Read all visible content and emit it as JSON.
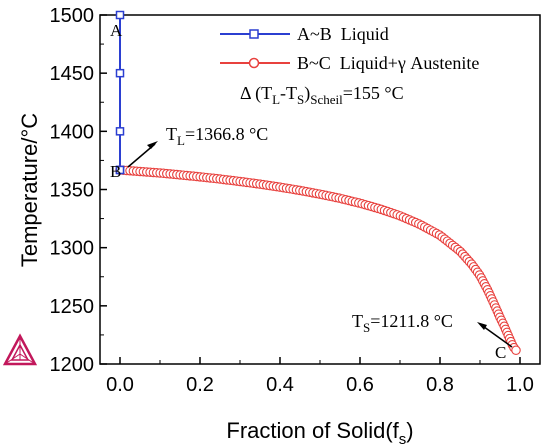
{
  "chart_data": {
    "type": "line",
    "xlabel": "Fraction of Solid(f",
    "xlabel_sub": "s",
    "xlabel_close": ")",
    "ylabel": "Temperature/°C",
    "xlim": [
      -0.05,
      1.05
    ],
    "ylim": [
      1200,
      1500
    ],
    "xticks": [
      0.0,
      0.2,
      0.4,
      0.6,
      0.8,
      1.0
    ],
    "xtick_labels": [
      "0.0",
      "0.2",
      "0.4",
      "0.6",
      "0.8",
      "1.0"
    ],
    "yticks": [
      1200,
      1250,
      1300,
      1350,
      1400,
      1450,
      1500
    ],
    "ytick_labels": [
      "1200",
      "1250",
      "1300",
      "1350",
      "1400",
      "1450",
      "1500"
    ],
    "grid": false,
    "legend_position": "top-right",
    "series": [
      {
        "name": "A~B  Liquid",
        "color": "#2b3fd1",
        "marker": "square",
        "x": [
          0,
          0,
          0,
          0,
          0
        ],
        "y": [
          1500,
          1450,
          1400,
          1366.8,
          1366.8
        ]
      },
      {
        "name": "B~C  Liquid+γ Austenite",
        "color": "#e8413e",
        "marker": "circle",
        "x": [
          0.0,
          0.05,
          0.1,
          0.15,
          0.2,
          0.25,
          0.3,
          0.35,
          0.4,
          0.45,
          0.5,
          0.55,
          0.6,
          0.65,
          0.7,
          0.75,
          0.8,
          0.85,
          0.88,
          0.9,
          0.92,
          0.94,
          0.95,
          0.96,
          0.97,
          0.975,
          0.98,
          0.985,
          0.99
        ],
        "y": [
          1366.8,
          1365.5,
          1364.2,
          1362.6,
          1360.9,
          1359.0,
          1356.9,
          1354.6,
          1352.0,
          1349.2,
          1346.0,
          1342.4,
          1338.2,
          1333.3,
          1327.4,
          1320.0,
          1310.6,
          1297.0,
          1285.5,
          1276.0,
          1263.0,
          1248.0,
          1240.0,
          1233.0,
          1225.0,
          1221.0,
          1217.0,
          1214.0,
          1211.8
        ]
      }
    ],
    "legend_extra": {
      "prefix": "Δ (T",
      "sub1": "L",
      "mid": "-T",
      "sub2": "S",
      "close": ")",
      "sub3": "Scheil",
      "suffix": "=155 °C"
    },
    "annotations": {
      "tl": {
        "main": "T",
        "sub": "L",
        "rest": "=1366.8 °C"
      },
      "ts": {
        "main": "T",
        "sub": "S",
        "rest": "=1211.8 °C"
      },
      "point_labels": [
        "A",
        "B",
        "C"
      ]
    }
  },
  "colors": {
    "liquid": "#2b3fd1",
    "austenite": "#e8413e",
    "logo": "#c2185b"
  },
  "logo": {
    "icon": "thermo-calc-triangle-icon"
  }
}
